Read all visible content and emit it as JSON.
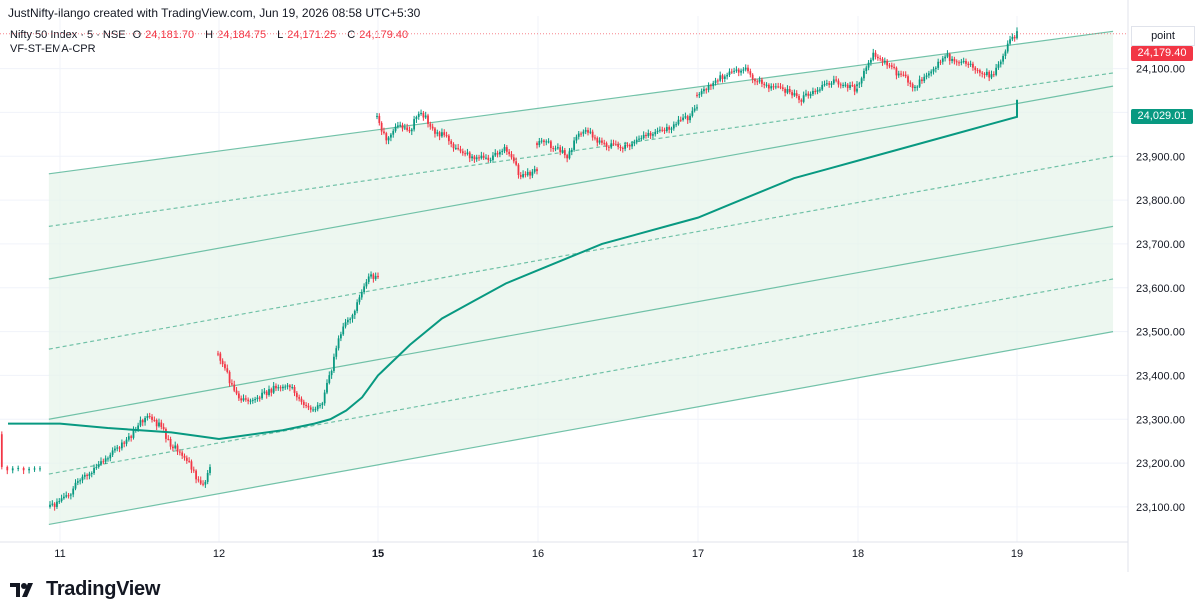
{
  "header": {
    "attribution": "JustNifty-ilango created with TradingView.com, Jun 19, 2026 08:58 UTC+5:30"
  },
  "legend": {
    "symbol": "Nifty 50 Index · 5 · NSE",
    "open_label": "O",
    "open": "24,181.70",
    "high_label": "H",
    "high": "24,184.75",
    "low_label": "L",
    "low": "24,171.25",
    "close_label": "C",
    "close": "24,179.40",
    "indicator": "VF-ST-EMA-CPR"
  },
  "scale_unit": "point",
  "price_tags": {
    "last_price": "24,179.40",
    "ema_value": "24,029.01",
    "last_color": "#f23645",
    "ema_color": "#089981"
  },
  "footer": {
    "brand": "TradingView",
    "logo_icon": "tradingview-logo-icon"
  },
  "colors": {
    "up": "#089981",
    "down": "#f23645",
    "ema": "#089981",
    "channel": "#5bb89b",
    "channel_fill": "#e6f4ea"
  },
  "chart_data": {
    "type": "candlestick",
    "x_tick_labels": [
      "11",
      "12",
      "15",
      "16",
      "17",
      "18",
      "19"
    ],
    "y_tick_labels": [
      "23,100.00",
      "23,200.00",
      "23,300.00",
      "23,400.00",
      "23,500.00",
      "23,600.00",
      "23,700.00",
      "23,800.00",
      "23,900.00",
      "24,000.00",
      "24,100.00"
    ],
    "ylim": [
      23020,
      24220
    ],
    "sessions": [
      {
        "day": "10",
        "path": [
          [
            0,
            23390
          ],
          [
            0.1,
            23340
          ],
          [
            0.2,
            23300
          ],
          [
            0.3,
            23250
          ],
          [
            0.35,
            23190
          ]
        ]
      },
      {
        "day": "11",
        "path": [
          [
            0,
            23100
          ],
          [
            0.1,
            23120
          ],
          [
            0.2,
            23170
          ],
          [
            0.3,
            23190
          ],
          [
            0.4,
            23230
          ],
          [
            0.5,
            23260
          ],
          [
            0.6,
            23310
          ],
          [
            0.7,
            23280
          ],
          [
            0.75,
            23240
          ],
          [
            0.8,
            23230
          ],
          [
            0.85,
            23210
          ],
          [
            0.9,
            23180
          ],
          [
            0.95,
            23140
          ],
          [
            1,
            23190
          ]
        ]
      },
      {
        "day": "12",
        "path": [
          [
            0,
            23450
          ],
          [
            0.05,
            23410
          ],
          [
            0.1,
            23360
          ],
          [
            0.15,
            23340
          ],
          [
            0.25,
            23350
          ],
          [
            0.35,
            23370
          ],
          [
            0.45,
            23380
          ],
          [
            0.5,
            23350
          ],
          [
            0.55,
            23330
          ],
          [
            0.6,
            23320
          ],
          [
            0.65,
            23340
          ],
          [
            0.7,
            23400
          ],
          [
            0.75,
            23480
          ],
          [
            0.8,
            23520
          ],
          [
            0.85,
            23550
          ],
          [
            0.9,
            23590
          ],
          [
            0.95,
            23630
          ],
          [
            1,
            23620
          ]
        ]
      },
      {
        "day": "15",
        "path": [
          [
            0,
            23990
          ],
          [
            0.05,
            23940
          ],
          [
            0.1,
            23960
          ],
          [
            0.15,
            23970
          ],
          [
            0.2,
            23950
          ],
          [
            0.25,
            24000
          ],
          [
            0.3,
            23990
          ],
          [
            0.35,
            23960
          ],
          [
            0.45,
            23940
          ],
          [
            0.5,
            23910
          ],
          [
            0.6,
            23900
          ],
          [
            0.7,
            23890
          ],
          [
            0.8,
            23920
          ],
          [
            0.85,
            23890
          ],
          [
            0.9,
            23850
          ],
          [
            0.95,
            23860
          ],
          [
            1,
            23870
          ]
        ]
      },
      {
        "day": "16",
        "path": [
          [
            0,
            23930
          ],
          [
            0.05,
            23940
          ],
          [
            0.1,
            23920
          ],
          [
            0.2,
            23900
          ],
          [
            0.25,
            23950
          ],
          [
            0.3,
            23960
          ],
          [
            0.4,
            23930
          ],
          [
            0.5,
            23920
          ],
          [
            0.6,
            23930
          ],
          [
            0.7,
            23950
          ],
          [
            0.8,
            23960
          ],
          [
            0.9,
            23980
          ],
          [
            0.95,
            23990
          ],
          [
            1,
            24010
          ]
        ]
      },
      {
        "day": "17",
        "path": [
          [
            0,
            24040
          ],
          [
            0.1,
            24070
          ],
          [
            0.2,
            24090
          ],
          [
            0.3,
            24100
          ],
          [
            0.35,
            24080
          ],
          [
            0.45,
            24060
          ],
          [
            0.55,
            24050
          ],
          [
            0.65,
            24030
          ],
          [
            0.75,
            24050
          ],
          [
            0.85,
            24070
          ],
          [
            0.95,
            24060
          ],
          [
            1,
            24050
          ]
        ]
      },
      {
        "day": "18",
        "path": [
          [
            0,
            24060
          ],
          [
            0.05,
            24100
          ],
          [
            0.1,
            24130
          ],
          [
            0.15,
            24120
          ],
          [
            0.2,
            24110
          ],
          [
            0.25,
            24090
          ],
          [
            0.3,
            24080
          ],
          [
            0.35,
            24060
          ],
          [
            0.4,
            24070
          ],
          [
            0.45,
            24090
          ],
          [
            0.5,
            24110
          ],
          [
            0.55,
            24130
          ],
          [
            0.6,
            24120
          ],
          [
            0.7,
            24110
          ],
          [
            0.75,
            24100
          ],
          [
            0.8,
            24090
          ],
          [
            0.85,
            24080
          ],
          [
            0.9,
            24120
          ],
          [
            0.95,
            24160
          ],
          [
            1,
            24179
          ]
        ]
      }
    ],
    "ema_path": [
      [
        10,
        23290
      ],
      [
        11,
        23290
      ],
      [
        11.3,
        23280
      ],
      [
        11.7,
        23270
      ],
      [
        11.9,
        23260
      ],
      [
        12,
        23255
      ],
      [
        12.4,
        23275
      ],
      [
        12.6,
        23290
      ],
      [
        12.7,
        23300
      ],
      [
        12.8,
        23320
      ],
      [
        12.9,
        23350
      ],
      [
        13,
        23400
      ],
      [
        13.2,
        23470
      ],
      [
        13.4,
        23530
      ],
      [
        13.6,
        23570
      ],
      [
        13.8,
        23610
      ],
      [
        14,
        23640
      ],
      [
        14.2,
        23670
      ],
      [
        14.4,
        23700
      ],
      [
        14.6,
        23720
      ],
      [
        14.8,
        23740
      ],
      [
        15,
        23760
      ],
      [
        15.2,
        23790
      ],
      [
        15.4,
        23820
      ],
      [
        15.6,
        23850
      ],
      [
        15.8,
        23870
      ],
      [
        16,
        23890
      ],
      [
        16.2,
        23910
      ],
      [
        16.4,
        23930
      ],
      [
        16.6,
        23950
      ],
      [
        16.8,
        23970
      ],
      [
        17,
        23990
      ],
      [
        17.2,
        24000
      ],
      [
        17.4,
        24015
      ],
      [
        17.6,
        24025
      ],
      [
        17.8,
        24029
      ]
    ],
    "channels": [
      {
        "role": "upper",
        "start": [
          10.93,
          23860
        ],
        "end": [
          18.98,
          24185
        ]
      },
      {
        "role": "upper_mid",
        "start": [
          10.93,
          23740
        ],
        "end": [
          18.98,
          24090
        ]
      },
      {
        "role": "upper_low",
        "start": [
          10.93,
          23620
        ],
        "end": [
          18.98,
          24060
        ]
      },
      {
        "role": "mid_dashed",
        "start": [
          10.93,
          23460
        ],
        "end": [
          18.98,
          23900
        ]
      },
      {
        "role": "lower_high",
        "start": [
          10.93,
          23300
        ],
        "end": [
          18.98,
          23740
        ]
      },
      {
        "role": "lower_mid",
        "start": [
          10.93,
          23175
        ],
        "end": [
          18.98,
          23620
        ]
      },
      {
        "role": "lower",
        "start": [
          10.93,
          23060
        ],
        "end": [
          18.98,
          23500
        ]
      }
    ]
  }
}
